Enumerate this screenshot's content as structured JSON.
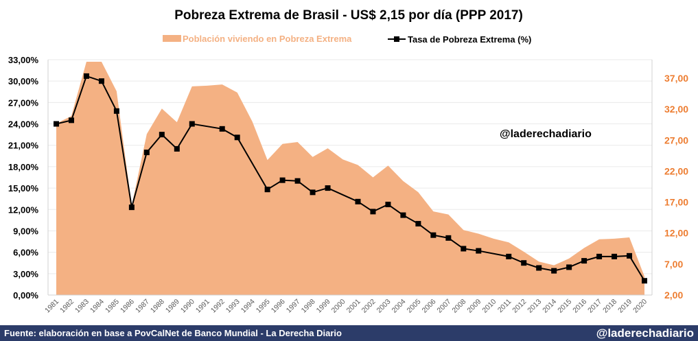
{
  "chart_data": {
    "type": "area+line",
    "title": "Pobreza Extrema de Brasil - US$ 2,15 por día (PPP 2017)",
    "watermark": "@laderechadiario",
    "legend_position": "top",
    "categories": [
      "1981",
      "1982",
      "1983",
      "1984",
      "1985",
      "1986",
      "1987",
      "1988",
      "1989",
      "1990",
      "1991",
      "1992",
      "1993",
      "1994",
      "1995",
      "1996",
      "1997",
      "1998",
      "1999",
      "2000",
      "2001",
      "2002",
      "2003",
      "2004",
      "2005",
      "2006",
      "2007",
      "2008",
      "2009",
      "2010",
      "2011",
      "2012",
      "2013",
      "2014",
      "2015",
      "2016",
      "2017",
      "2018",
      "2019",
      "2020"
    ],
    "series": [
      {
        "name": "Población viviendo en Pobreza Extrema",
        "type": "area",
        "axis": "right",
        "color": "#f4b183",
        "values": [
          29.7,
          30.9,
          40.0,
          40.0,
          34.9,
          16.4,
          28.0,
          32.1,
          29.9,
          35.7,
          35.8,
          36.0,
          34.7,
          30.0,
          23.8,
          26.4,
          26.7,
          24.3,
          25.7,
          23.9,
          23.0,
          21.0,
          22.9,
          20.4,
          18.6,
          15.5,
          15.0,
          12.5,
          11.9,
          11.1,
          10.5,
          9.0,
          7.4,
          6.8,
          7.9,
          9.6,
          11.0,
          11.1,
          11.3,
          5.0
        ]
      },
      {
        "name": "Tasa de Pobreza Extrema (%)",
        "type": "line",
        "axis": "left",
        "color": "#000000",
        "values": [
          24.0,
          24.5,
          30.7,
          30.0,
          25.8,
          12.3,
          20.0,
          22.5,
          20.5,
          24.0,
          null,
          23.3,
          22.1,
          null,
          14.8,
          16.1,
          16.0,
          14.4,
          15.0,
          null,
          13.1,
          11.7,
          12.7,
          11.2,
          10.0,
          8.4,
          8.0,
          6.5,
          6.2,
          null,
          5.4,
          4.5,
          3.8,
          3.4,
          3.9,
          4.8,
          5.4,
          5.4,
          5.5,
          2.0
        ]
      }
    ],
    "y_left": {
      "range": [
        0,
        33
      ],
      "ticks": [
        "0,00%",
        "3,00%",
        "6,00%",
        "9,00%",
        "12,00%",
        "15,00%",
        "18,00%",
        "21,00%",
        "24,00%",
        "27,00%",
        "30,00%",
        "33,00%"
      ]
    },
    "y_right": {
      "range": [
        2,
        40
      ],
      "ticks": [
        "2,00",
        "7,00",
        "12,00",
        "17,00",
        "22,00",
        "27,00",
        "32,00",
        "37,00"
      ],
      "color": "#ed7d31"
    },
    "grid": true
  },
  "footer": {
    "source": "Fuente: elaboración en base a PovCalNet de Banco Mundial - La Derecha Diario",
    "handle": "@laderechadiario"
  }
}
